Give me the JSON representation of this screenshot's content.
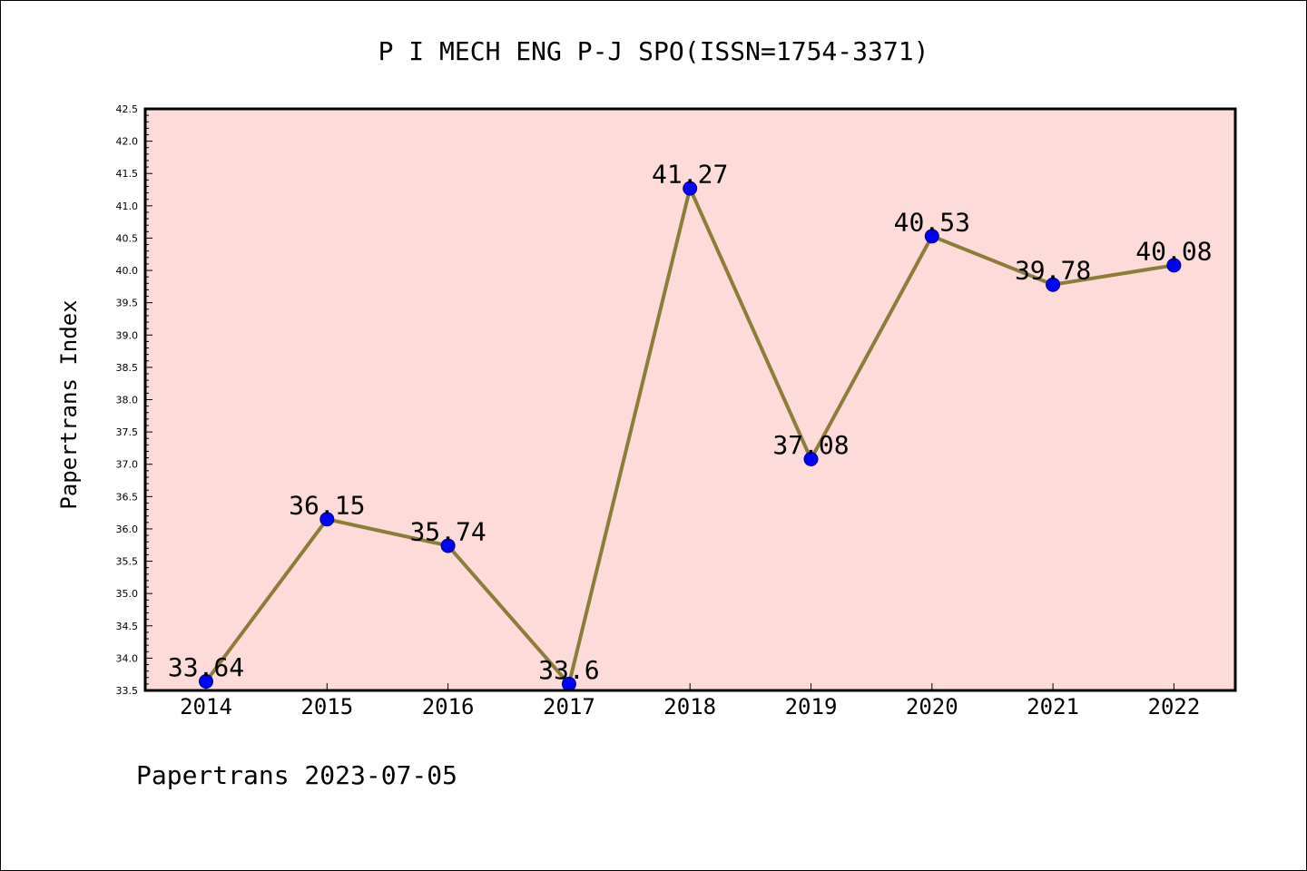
{
  "chart_data": {
    "type": "line",
    "title": "P I MECH ENG P-J SPO(ISSN=1754-3371)",
    "ylabel": "Papertrans Index",
    "xlabel": "",
    "footer": "Papertrans 2023-07-05",
    "categories": [
      "2014",
      "2015",
      "2016",
      "2017",
      "2018",
      "2019",
      "2020",
      "2021",
      "2022"
    ],
    "values": [
      33.64,
      36.15,
      35.74,
      33.6,
      41.27,
      37.08,
      40.53,
      39.78,
      40.08
    ],
    "data_labels": [
      "33.64",
      "36.15",
      "35.74",
      "33.6",
      "41.27",
      "37.08",
      "40.53",
      "39.78",
      "40.08"
    ],
    "ylim": [
      33.5,
      42.5
    ],
    "yticks": [
      "33.5",
      "34.0",
      "34.5",
      "35.0",
      "35.5",
      "36.0",
      "36.5",
      "37.0",
      "37.5",
      "38.0",
      "38.5",
      "39.0",
      "39.5",
      "40.0",
      "40.5",
      "41.0",
      "41.5",
      "42.0",
      "42.5"
    ],
    "grid": false,
    "colors": {
      "plot_background": "#fddbd8",
      "line": "#8b7d3a",
      "marker": "#0000ff",
      "marker_edge": "#000080",
      "axes": "#000000"
    }
  }
}
